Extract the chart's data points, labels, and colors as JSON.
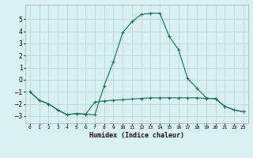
{
  "xlabel": "Humidex (Indice chaleur)",
  "xlim": [
    -0.5,
    23.5
  ],
  "ylim": [
    -3.6,
    6.2
  ],
  "yticks": [
    -3,
    -2,
    -1,
    0,
    1,
    2,
    3,
    4,
    5
  ],
  "bg_color": "#d8f0f0",
  "grid_color": "#b8d8d8",
  "line_color": "#1a6b5a",
  "line1_x": [
    0,
    1,
    2,
    3,
    4,
    5,
    6,
    7,
    8,
    9,
    10,
    11,
    12,
    13,
    14,
    15,
    16,
    17,
    18,
    19,
    20,
    21,
    22,
    23
  ],
  "line1_y": [
    -1.0,
    -1.7,
    -2.0,
    -2.5,
    -2.9,
    -2.8,
    -2.85,
    -2.9,
    -0.5,
    1.5,
    3.9,
    4.8,
    5.4,
    5.5,
    5.5,
    3.6,
    2.5,
    0.1,
    -0.7,
    -1.5,
    -1.6,
    -2.2,
    -2.5,
    -2.65
  ],
  "line2_x": [
    0,
    1,
    2,
    3,
    4,
    5,
    6,
    7,
    8,
    9,
    10,
    11,
    12,
    13,
    14,
    15,
    16,
    17,
    18,
    19,
    20,
    21,
    22,
    23
  ],
  "line2_y": [
    -1.0,
    -1.7,
    -2.0,
    -2.5,
    -2.9,
    -2.8,
    -2.85,
    -1.85,
    -1.75,
    -1.7,
    -1.65,
    -1.6,
    -1.55,
    -1.5,
    -1.5,
    -1.5,
    -1.5,
    -1.5,
    -1.5,
    -1.55,
    -1.55,
    -2.2,
    -2.5,
    -2.65
  ]
}
